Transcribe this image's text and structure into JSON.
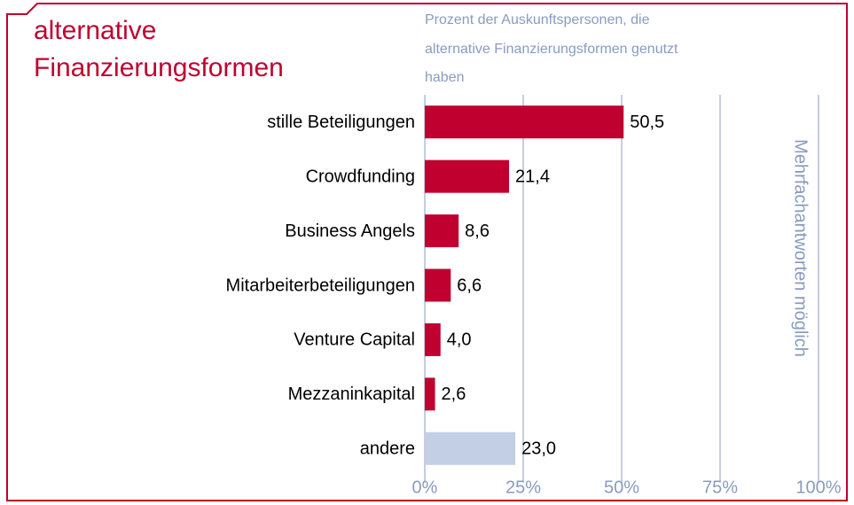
{
  "chart_data": {
    "type": "bar",
    "orientation": "horizontal",
    "title": [
      "alternative",
      "Finanzierungsformen"
    ],
    "subtitle": [
      "Prozent der Auskunftspersonen, die",
      "alternative Finanzierungsformen genutzt",
      "haben"
    ],
    "annotation": "Mehrfachantworten möglich",
    "categories": [
      "stille Beteiligungen",
      "Crowdfunding",
      "Business Angels",
      "Mitarbeiterbeteiligungen",
      "Venture Capital",
      "Mezzaninkapital",
      "andere"
    ],
    "values": [
      50.5,
      21.4,
      8.6,
      6.6,
      4.0,
      2.6,
      23.0
    ],
    "value_labels": [
      "50,5",
      "21,4",
      "8,6",
      "6,6",
      "4,0",
      "2,6",
      "23,0"
    ],
    "colors": [
      "#c0002f",
      "#c0002f",
      "#c0002f",
      "#c0002f",
      "#c0002f",
      "#c0002f",
      "#c2cfe5"
    ],
    "xlim": [
      0,
      100
    ],
    "xticks": [
      {
        "value": 0,
        "label": "0%"
      },
      {
        "value": 25,
        "label": "25%"
      },
      {
        "value": 50,
        "label": "50%"
      },
      {
        "value": 75,
        "label": "75%"
      },
      {
        "value": 100,
        "label": "100%"
      }
    ],
    "grid": true
  }
}
